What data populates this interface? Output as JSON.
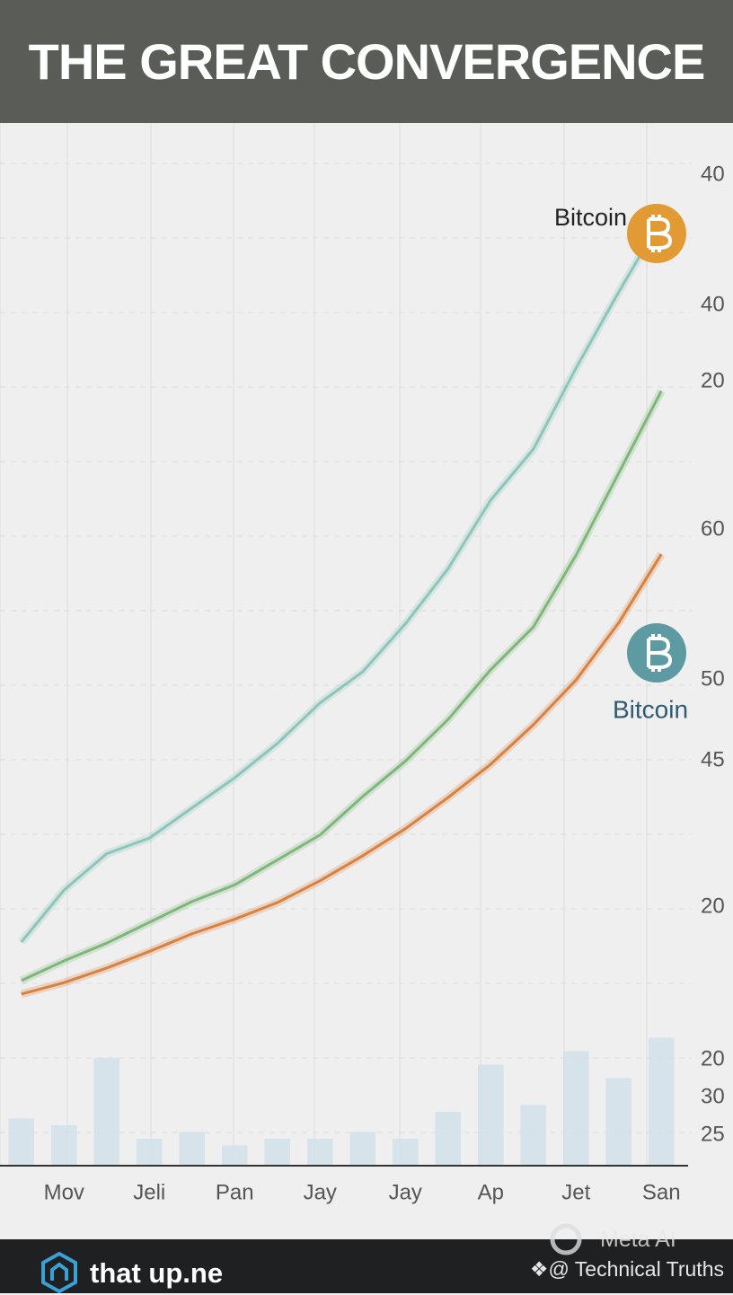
{
  "chart_data": {
    "type": "line",
    "title": "THE GREAT CONVERGENCE",
    "categories": [
      null,
      "Mov",
      null,
      "Jeli",
      null,
      "Pan",
      null,
      "Jay",
      null,
      "Jay",
      null,
      "Ap",
      null,
      "Jet",
      null,
      "San"
    ],
    "series": [
      {
        "color": "#8cc5bb",
        "values": [
          21.5,
          26.5,
          30,
          31.5,
          34.4,
          37.3,
          40.6,
          44.5,
          47.5,
          52.1,
          57.4,
          64,
          68.9,
          76.7,
          84,
          91
        ]
      },
      {
        "color": "#7fb77a",
        "values": [
          17.8,
          19.7,
          21.4,
          23.4,
          25.4,
          27,
          29.4,
          31.8,
          35.5,
          38.9,
          42.9,
          47.7,
          51.8,
          58.7,
          66.6,
          74.5
        ]
      },
      {
        "color": "#d9813f",
        "values": [
          16.5,
          17.6,
          19,
          20.6,
          22.3,
          23.7,
          25.3,
          27.4,
          29.8,
          32.4,
          35.4,
          38.6,
          42.4,
          46.7,
          52.2,
          58.8
        ]
      }
    ],
    "ylim": [
      0,
      100
    ],
    "volume": {
      "color": "#cfe0ea",
      "values": [
        35,
        30,
        80,
        20,
        25,
        15,
        20,
        20,
        25,
        20,
        40,
        75,
        45,
        85,
        65,
        95
      ],
      "ylim": [
        0,
        100
      ]
    },
    "right_axis_labels": [
      "40",
      "40",
      "20",
      "60",
      "50",
      "45",
      "20",
      "20",
      "30",
      "25"
    ],
    "annotations": [
      "Bitcoin",
      "Bitcoin"
    ]
  },
  "footer": {
    "brand": "that up.ne",
    "handle": "❖@ Technical Truths",
    "watermark": "Meta AI"
  }
}
